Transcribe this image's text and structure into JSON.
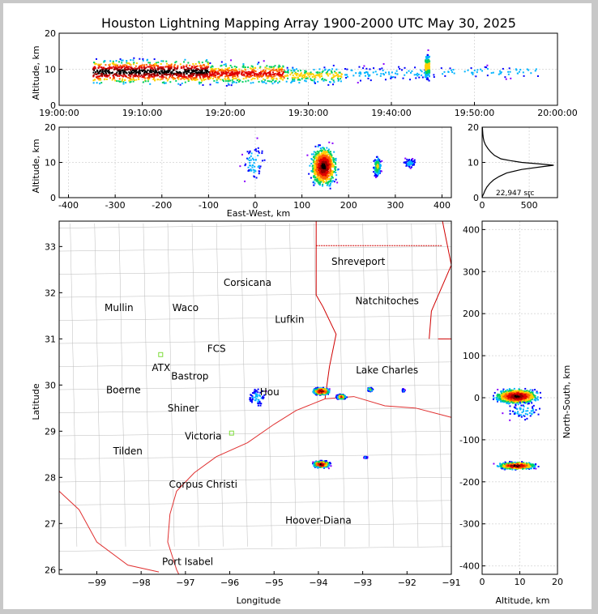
{
  "title": "Houston Lightning Mapping Array 1900-2000 UTC May 30, 2025",
  "source_count_label": "22,947 src",
  "colors": {
    "border": "#e03030",
    "state": "#d00000",
    "county": "#bbbbbb",
    "sensor": "#7ddc3a",
    "grid": "#dddddd"
  },
  "colormap": [
    "#8a00ff",
    "#0000ff",
    "#00b4ff",
    "#00d060",
    "#ffd000",
    "#ff6000",
    "#e00000",
    "#900000",
    "#000000"
  ],
  "chart_data": [
    {
      "type": "scatter",
      "name": "altitude-vs-time",
      "xlabel": "",
      "ylabel": "Altitude, km",
      "xlim": [
        "19:00:00",
        "20:00:00"
      ],
      "ylim": [
        0,
        20
      ],
      "x_ticks": [
        "19:00:00",
        "19:10:00",
        "19:20:00",
        "19:30:00",
        "19:40:00",
        "19:50:00",
        "20:00:00"
      ],
      "y_ticks": [
        0,
        10,
        20
      ],
      "clusters": [
        {
          "t_min": 4,
          "t_max": 18,
          "alt_min": 5,
          "alt_max": 14,
          "density": "very-high"
        },
        {
          "t_min": 18,
          "t_max": 27,
          "alt_min": 5,
          "alt_max": 13,
          "density": "high"
        },
        {
          "t_min": 27,
          "t_max": 34,
          "alt_min": 5,
          "alt_max": 12,
          "density": "medium"
        },
        {
          "t_min": 34,
          "t_max": 44,
          "alt_min": 6,
          "alt_max": 12,
          "density": "low"
        },
        {
          "t_min": 44,
          "t_max": 44.5,
          "alt_min": 6,
          "alt_max": 16,
          "density": "medium"
        },
        {
          "t_min": 45,
          "t_max": 58,
          "alt_min": 7,
          "alt_max": 12,
          "density": "sparse"
        }
      ]
    },
    {
      "type": "scatter",
      "name": "altitude-vs-east-west",
      "xlabel": "East-West, km",
      "ylabel": "Altitude, km",
      "xlim": [
        -420,
        420
      ],
      "ylim": [
        0,
        20
      ],
      "x_ticks": [
        -400,
        -300,
        -200,
        -100,
        0,
        100,
        200,
        300,
        400
      ],
      "y_ticks": [
        0,
        10,
        20
      ],
      "clusters": [
        {
          "x": -5,
          "alt": 10,
          "spread_x": 40,
          "spread_alt": 9,
          "density": "sparse"
        },
        {
          "x": 145,
          "alt": 9,
          "spread_x": 40,
          "spread_alt": 8,
          "density": "very-high"
        },
        {
          "x": 260,
          "alt": 9,
          "spread_x": 12,
          "spread_alt": 4,
          "density": "medium"
        },
        {
          "x": 330,
          "alt": 10,
          "spread_x": 20,
          "spread_alt": 2,
          "density": "sparse"
        }
      ]
    },
    {
      "type": "line",
      "name": "altitude-histogram",
      "xlim": [
        0,
        800
      ],
      "ylim": [
        0,
        20
      ],
      "x_ticks": [
        0,
        500
      ],
      "y_ticks": [
        0,
        10,
        20
      ],
      "counts": [
        [
          0,
          0
        ],
        [
          5,
          0.5
        ],
        [
          15,
          1
        ],
        [
          30,
          2
        ],
        [
          50,
          3
        ],
        [
          80,
          4
        ],
        [
          120,
          5
        ],
        [
          180,
          6
        ],
        [
          260,
          7
        ],
        [
          420,
          8
        ],
        [
          640,
          8.8
        ],
        [
          760,
          9.2
        ],
        [
          600,
          9.6
        ],
        [
          420,
          10
        ],
        [
          300,
          10.5
        ],
        [
          200,
          11
        ],
        [
          130,
          12
        ],
        [
          90,
          13
        ],
        [
          60,
          14
        ],
        [
          35,
          15
        ],
        [
          20,
          16
        ],
        [
          12,
          17
        ],
        [
          8,
          18
        ],
        [
          5,
          19
        ],
        [
          3,
          20
        ]
      ]
    },
    {
      "type": "scatter",
      "name": "plan-view-map",
      "xlabel": "Longitude",
      "ylabel": "Latitude",
      "xlim": [
        -99.85,
        -91
      ],
      "ylim": [
        25.9,
        33.55
      ],
      "x_ticks": [
        -99,
        -98,
        -97,
        -96,
        -95,
        -94,
        -93,
        -92,
        -91
      ],
      "y_ticks": [
        26,
        27,
        28,
        29,
        30,
        31,
        32,
        33
      ],
      "clusters": [
        {
          "lon": -95.4,
          "lat": 29.75,
          "spread_lon": 0.3,
          "spread_lat": 0.3,
          "density": "sparse"
        },
        {
          "lon": -93.95,
          "lat": 29.88,
          "spread_lon": 0.25,
          "spread_lat": 0.1,
          "density": "very-high"
        },
        {
          "lon": -93.5,
          "lat": 29.76,
          "spread_lon": 0.15,
          "spread_lat": 0.07,
          "density": "high"
        },
        {
          "lon": -92.85,
          "lat": 29.92,
          "spread_lon": 0.08,
          "spread_lat": 0.06,
          "density": "medium"
        },
        {
          "lon": -92.1,
          "lat": 29.9,
          "spread_lon": 0.05,
          "spread_lat": 0.05,
          "density": "sparse"
        },
        {
          "lon": -93.95,
          "lat": 28.3,
          "spread_lon": 0.25,
          "spread_lat": 0.1,
          "density": "very-high"
        },
        {
          "lon": -92.95,
          "lat": 28.45,
          "spread_lon": 0.06,
          "spread_lat": 0.03,
          "density": "sparse"
        }
      ],
      "cities": [
        {
          "name": "Shreveport",
          "lon": -93.1,
          "lat": 32.6,
          "color": "#000000"
        },
        {
          "name": "Corsicana",
          "lon": -95.6,
          "lat": 32.15,
          "color": "#000000"
        },
        {
          "name": "Natchitoches",
          "lon": -92.45,
          "lat": 31.75,
          "color": "#000000"
        },
        {
          "name": "Mullin",
          "lon": -98.5,
          "lat": 31.6,
          "color": "#ff8040"
        },
        {
          "name": "Waco",
          "lon": -97.0,
          "lat": 31.6,
          "color": "#000000"
        },
        {
          "name": "Lufkin",
          "lon": -94.65,
          "lat": 31.35,
          "color": "#000000"
        },
        {
          "name": "FCS",
          "lon": -96.3,
          "lat": 30.72,
          "color": "#cc4444"
        },
        {
          "name": "ATX",
          "lon": -97.55,
          "lat": 30.3,
          "color": "#ff8040"
        },
        {
          "name": "Bastrop",
          "lon": -96.9,
          "lat": 30.12,
          "color": "#000000"
        },
        {
          "name": "Lake Charles",
          "lon": -92.45,
          "lat": 30.25,
          "color": "#000000"
        },
        {
          "name": "Boerne",
          "lon": -98.4,
          "lat": 29.82,
          "color": "#000000"
        },
        {
          "name": "Hou",
          "lon": -95.1,
          "lat": 29.78,
          "color": "#ffaa00"
        },
        {
          "name": "Shiner",
          "lon": -97.05,
          "lat": 29.43,
          "color": "#000000"
        },
        {
          "name": "Victoria",
          "lon": -96.6,
          "lat": 28.82,
          "color": "#000000"
        },
        {
          "name": "Tilden",
          "lon": -98.3,
          "lat": 28.5,
          "color": "#000000"
        },
        {
          "name": "Corpus Christi",
          "lon": -96.6,
          "lat": 27.78,
          "color": "#000000"
        },
        {
          "name": "Hoover-Diana",
          "lon": -94.0,
          "lat": 27.0,
          "color": "#0000ff"
        },
        {
          "name": "Port Isabel",
          "lon": -96.95,
          "lat": 26.1,
          "color": "#000000"
        }
      ]
    },
    {
      "type": "scatter",
      "name": "north-south-vs-altitude",
      "xlabel": "Altitude, km",
      "ylabel": "North-South, km",
      "xlim": [
        0,
        20
      ],
      "ylim": [
        -420,
        420
      ],
      "x_ticks": [
        0,
        10,
        20
      ],
      "y_ticks": [
        -400,
        -300,
        -200,
        -100,
        0,
        100,
        200,
        300,
        400
      ],
      "clusters": [
        {
          "alt": 9,
          "y": 5,
          "spread_alt": 8,
          "spread_y": 25,
          "density": "very-high"
        },
        {
          "alt": 11,
          "y": -30,
          "spread_alt": 8,
          "spread_y": 35,
          "density": "sparse"
        },
        {
          "alt": 9,
          "y": -160,
          "spread_alt": 7,
          "spread_y": 12,
          "density": "very-high"
        }
      ]
    }
  ]
}
